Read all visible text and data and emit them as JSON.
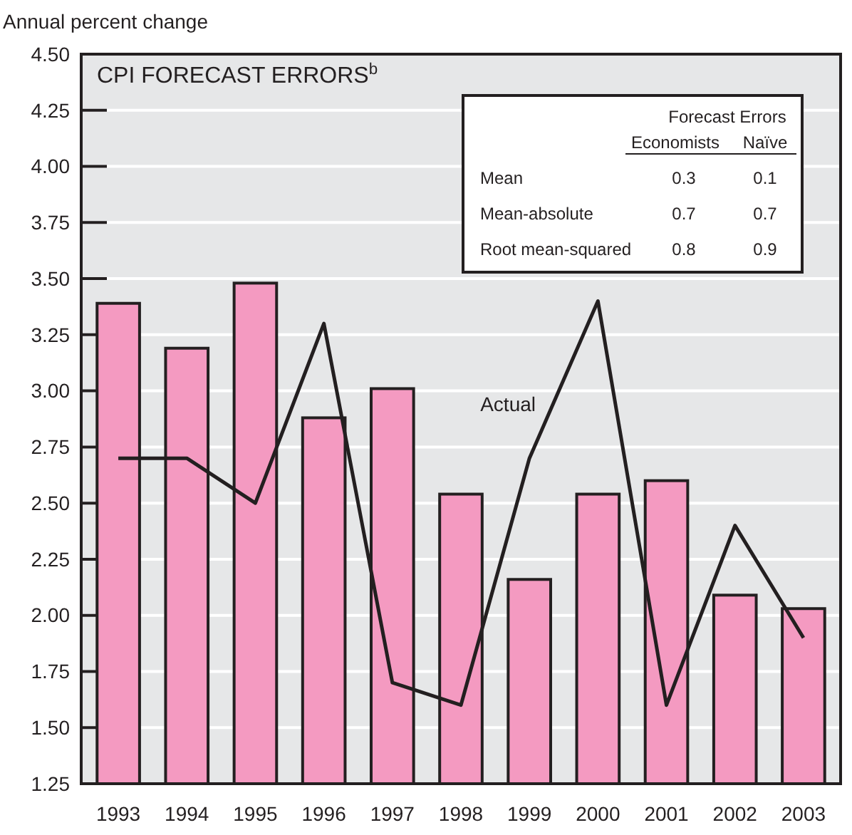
{
  "chart_data": {
    "type": "bar",
    "title": "CPI FORECAST ERRORS$^{b}$",
    "ylabel": "Annual percent change",
    "categories": [
      "1993",
      "1994",
      "1995",
      "1996",
      "1997",
      "1998",
      "1999",
      "2000",
      "2001",
      "2002",
      "2003"
    ],
    "series": [
      {
        "color": "#f49ac1",
        "values": [
          3.39,
          3.19,
          3.48,
          2.88,
          3.01,
          2.54,
          2.16,
          2.54,
          2.6,
          2.09,
          2.03
        ]
      },
      {
        "type": "line",
        "name": "Actual",
        "color": "#231f20",
        "values": [
          2.7,
          2.7,
          2.5,
          3.3,
          1.7,
          1.6,
          2.7,
          3.4,
          1.6,
          2.4,
          1.9
        ]
      }
    ],
    "ylim": [
      1.25,
      4.5
    ],
    "yticks": [
      {
        "value": 1.25,
        "label": "1.25"
      },
      {
        "value": 1.5,
        "label": "1.50"
      },
      {
        "value": 1.75,
        "label": "1.75"
      },
      {
        "value": 2,
        "label": "2.00"
      },
      {
        "value": 2.25,
        "label": "2.25"
      },
      {
        "value": 2.5,
        "label": "2.50"
      },
      {
        "value": 2.75,
        "label": "2.75"
      },
      {
        "value": 3,
        "label": "3.00"
      },
      {
        "value": 3.25,
        "label": "3.25"
      },
      {
        "value": 3.5,
        "label": "3.50"
      },
      {
        "value": 3.75,
        "label": "3.75"
      },
      {
        "value": 4,
        "label": "4.00"
      },
      {
        "value": 4.25,
        "label": "4.25"
      },
      {
        "value": 4.5,
        "label": "4.50"
      }
    ],
    "grid": "y",
    "annotations": [
      "Forecast Errors",
      "Economists",
      "Naïve",
      "Mean",
      "0.3",
      "0.1",
      "Mean-absolute",
      "0.7",
      "0.7",
      "Root mean-squared",
      "0.8",
      "0.9"
    ]
  }
}
